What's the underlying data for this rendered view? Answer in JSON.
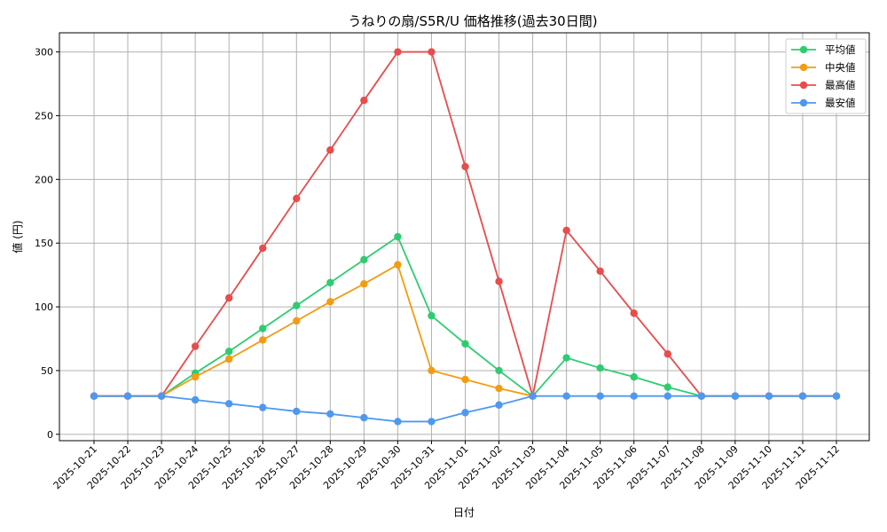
{
  "chart_data": {
    "type": "line",
    "title": "うねりの扇/S5R/U 価格推移(過去30日間)",
    "xlabel": "日付",
    "ylabel": "値 (円)",
    "ylim": [
      -5,
      315
    ],
    "yticks": [
      0,
      50,
      100,
      150,
      200,
      250,
      300
    ],
    "grid": true,
    "legend_position": "top-right",
    "categories": [
      "2025-10-21",
      "2025-10-22",
      "2025-10-23",
      "2025-10-24",
      "2025-10-25",
      "2025-10-26",
      "2025-10-27",
      "2025-10-28",
      "2025-10-29",
      "2025-10-30",
      "2025-10-31",
      "2025-11-01",
      "2025-11-02",
      "2025-11-03",
      "2025-11-04",
      "2025-11-05",
      "2025-11-06",
      "2025-11-07",
      "2025-11-08",
      "2025-11-09",
      "2025-11-10",
      "2025-11-11",
      "2025-11-12"
    ],
    "series": [
      {
        "name": "平均値",
        "color": "#2ecc71",
        "values": [
          30,
          30,
          30,
          48,
          65,
          83,
          101,
          119,
          137,
          155,
          93,
          71,
          50,
          30,
          60,
          52,
          45,
          37,
          30,
          30,
          30,
          30,
          30
        ]
      },
      {
        "name": "中央値",
        "color": "#f39c12",
        "values": [
          30,
          30,
          30,
          45,
          59,
          74,
          89,
          104,
          118,
          133,
          50,
          43,
          36,
          30,
          null,
          null,
          null,
          null,
          null,
          null,
          null,
          null,
          null
        ]
      },
      {
        "name": "最高値",
        "color": "#e84c4c",
        "values": [
          30,
          30,
          30,
          69,
          107,
          146,
          185,
          223,
          262,
          300,
          300,
          210,
          120,
          30,
          160,
          128,
          95,
          63,
          30,
          30,
          30,
          30,
          30
        ]
      },
      {
        "name": "最安値",
        "color": "#4f98f0",
        "values": [
          30,
          30,
          30,
          27,
          24,
          21,
          18,
          16,
          13,
          10,
          10,
          17,
          23,
          30,
          30,
          30,
          30,
          30,
          30,
          30,
          30,
          30,
          30
        ]
      }
    ]
  }
}
